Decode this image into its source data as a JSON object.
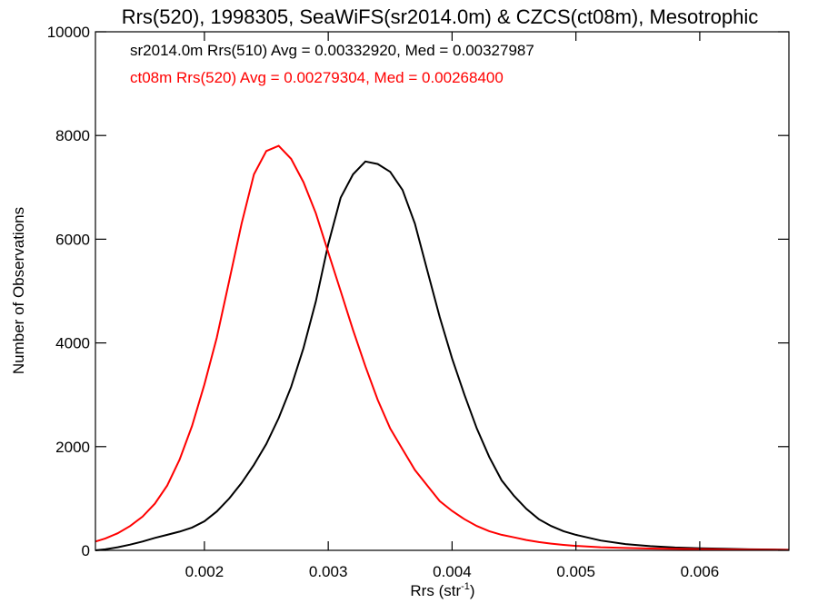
{
  "chart_data": {
    "type": "line",
    "title": "Rrs(520), 1998305, SeaWiFS(sr2014.0m) & CZCS(ct08m), Mesotrophic",
    "xlabel": "Rrs (str",
    "xlabel_sup": "-1",
    "xlabel_end": ")",
    "ylabel": "Number of Observations",
    "xlim": [
      0.00112,
      0.00672
    ],
    "ylim": [
      0,
      10000
    ],
    "x_ticks": [
      0.002,
      0.003,
      0.004,
      0.005,
      0.006
    ],
    "x_tick_labels": [
      "0.002",
      "0.003",
      "0.004",
      "0.005",
      "0.006"
    ],
    "y_ticks": [
      0,
      2000,
      4000,
      6000,
      8000,
      10000
    ],
    "y_tick_labels": [
      "0",
      "2000",
      "4000",
      "6000",
      "8000",
      "10000"
    ],
    "grid": false,
    "annotations": [
      {
        "text": "sr2014.0m Rrs(510) Avg = 0.00332920, Med = 0.00327987",
        "color": "#000000"
      },
      {
        "text": "ct08m Rrs(520) Avg = 0.00279304, Med = 0.00268400",
        "color": "#ff0000"
      }
    ],
    "series": [
      {
        "color": "#000000",
        "x": [
          0.00112,
          0.0012,
          0.0013,
          0.0014,
          0.0015,
          0.0016,
          0.0017,
          0.0018,
          0.0019,
          0.002,
          0.0021,
          0.0022,
          0.0023,
          0.0024,
          0.0025,
          0.0026,
          0.0027,
          0.0028,
          0.0029,
          0.003,
          0.0031,
          0.0032,
          0.0033,
          0.0034,
          0.0035,
          0.0036,
          0.0037,
          0.0038,
          0.0039,
          0.004,
          0.0041,
          0.0042,
          0.0043,
          0.0044,
          0.0045,
          0.0046,
          0.0047,
          0.0048,
          0.0049,
          0.005,
          0.0052,
          0.0054,
          0.0056,
          0.0058,
          0.006,
          0.0062,
          0.0064,
          0.0066,
          0.00672
        ],
        "y": [
          0,
          20,
          60,
          110,
          170,
          240,
          300,
          360,
          440,
          560,
          750,
          1000,
          1300,
          1650,
          2050,
          2550,
          3150,
          3900,
          4800,
          5900,
          6800,
          7250,
          7500,
          7450,
          7300,
          6950,
          6300,
          5400,
          4500,
          3700,
          3000,
          2350,
          1800,
          1350,
          1050,
          800,
          600,
          470,
          370,
          300,
          190,
          120,
          80,
          55,
          40,
          30,
          20,
          15,
          10
        ]
      },
      {
        "color": "#ff0000",
        "x": [
          0.00112,
          0.0012,
          0.0013,
          0.0014,
          0.0015,
          0.0016,
          0.0017,
          0.0018,
          0.0019,
          0.002,
          0.0021,
          0.0022,
          0.0023,
          0.0024,
          0.0025,
          0.0026,
          0.0027,
          0.0028,
          0.0029,
          0.003,
          0.0031,
          0.0032,
          0.0033,
          0.0034,
          0.0035,
          0.0036,
          0.0037,
          0.0038,
          0.0039,
          0.004,
          0.0041,
          0.0042,
          0.0043,
          0.0044,
          0.0045,
          0.0046,
          0.0047,
          0.0048,
          0.0049,
          0.005,
          0.0052,
          0.0054,
          0.0056,
          0.0058,
          0.006,
          0.0062,
          0.0064,
          0.0066,
          0.00672
        ],
        "y": [
          170,
          230,
          330,
          470,
          650,
          900,
          1250,
          1750,
          2400,
          3200,
          4100,
          5200,
          6300,
          7250,
          7700,
          7800,
          7550,
          7100,
          6500,
          5750,
          5000,
          4250,
          3550,
          2900,
          2350,
          1950,
          1550,
          1250,
          950,
          760,
          600,
          470,
          370,
          300,
          250,
          200,
          160,
          130,
          105,
          85,
          60,
          45,
          35,
          28,
          22,
          18,
          14,
          10,
          8
        ]
      }
    ]
  }
}
